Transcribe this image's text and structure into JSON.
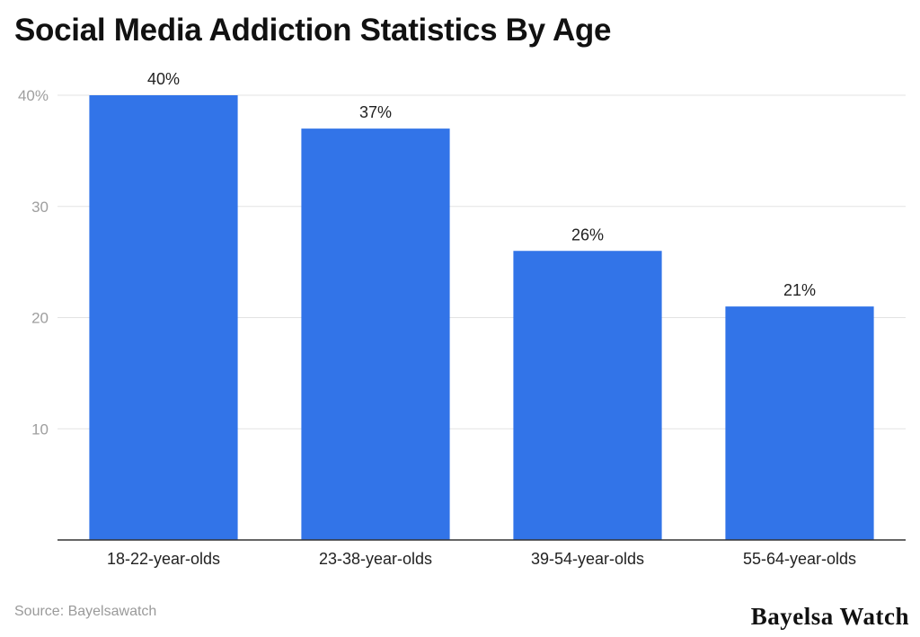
{
  "chart_data": {
    "type": "bar",
    "title": "Social Media Addiction Statistics By Age",
    "categories": [
      "18-22-year-olds",
      "23-38-year-olds",
      "39-54-year-olds",
      "55-64-year-olds"
    ],
    "values": [
      40,
      37,
      26,
      21
    ],
    "data_labels": [
      "40%",
      "37%",
      "26%",
      "21%"
    ],
    "ylim": [
      0,
      40
    ],
    "yticks": [
      10,
      20,
      30,
      40
    ],
    "ytick_labels": [
      "10",
      "20",
      "30",
      "40%"
    ],
    "xlabel": "",
    "ylabel": "",
    "grid": true,
    "legend": "none",
    "bar_color": "#3274e8"
  },
  "source": "Source: Bayelsawatch",
  "brand": "Bayelsa Watch"
}
